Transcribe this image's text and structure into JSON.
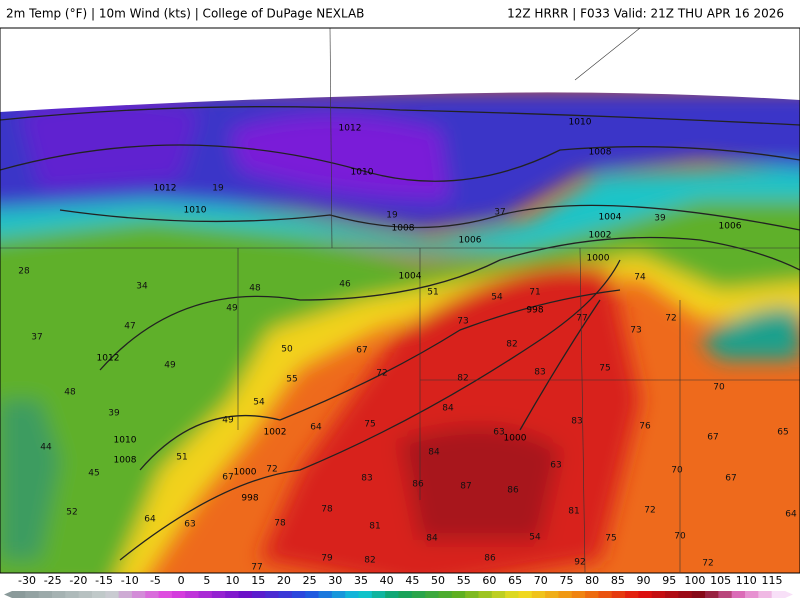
{
  "header": {
    "left": "2m Temp (°F) | 10m Wind (kts) | College of DuPage NEXLAB",
    "right": "12Z HRRR | F033 Valid: 21Z THU APR 16 2026"
  },
  "map": {
    "isobar_labels": [
      1012,
      1010,
      1010,
      1008,
      1012,
      1010,
      1008,
      1006,
      1004,
      1002,
      1000,
      1006,
      1004,
      998,
      1012,
      1010,
      1008,
      1002,
      1000,
      998,
      1000
    ],
    "temperature_labels": [
      19,
      19,
      37,
      39,
      48,
      46,
      51,
      54,
      71,
      74,
      49,
      73,
      77,
      73,
      72,
      50,
      67,
      82,
      72,
      82,
      83,
      55,
      54,
      64,
      75,
      84,
      28,
      34,
      47,
      37,
      49,
      48,
      39,
      49,
      51,
      44,
      45,
      52,
      64,
      63,
      72,
      67,
      83,
      86,
      87,
      86,
      78,
      81,
      84,
      54,
      82,
      86,
      92,
      77,
      78,
      79,
      75,
      70,
      83,
      76,
      67,
      65,
      63,
      70,
      67,
      72,
      81,
      75,
      70,
      72,
      64,
      84,
      63
    ]
  },
  "colorbar": {
    "labels": [
      -30,
      -25,
      -20,
      -15,
      -10,
      -5,
      0,
      5,
      10,
      15,
      20,
      25,
      30,
      35,
      40,
      45,
      50,
      55,
      60,
      65,
      70,
      75,
      80,
      85,
      90,
      95,
      100,
      105,
      110,
      115
    ]
  }
}
